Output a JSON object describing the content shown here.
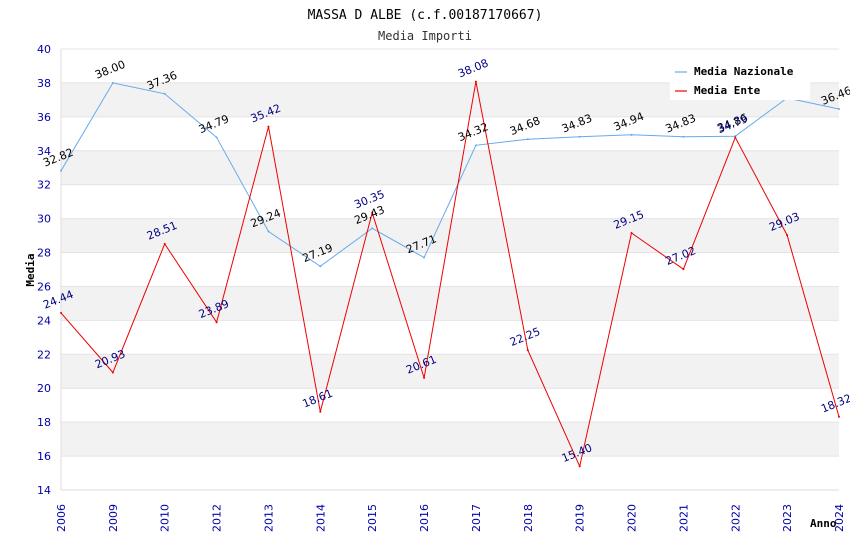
{
  "chart_data": {
    "type": "line",
    "title": "MASSA D ALBE (c.f.00187170667)",
    "subtitle": "Media Importi",
    "xlabel": "Anno",
    "ylabel": "Media",
    "categories": [
      "2006",
      "2009",
      "2010",
      "2012",
      "2013",
      "2014",
      "2015",
      "2016",
      "2017",
      "2018",
      "2019",
      "2020",
      "2021",
      "2022",
      "2023",
      "2024"
    ],
    "ylim": [
      14,
      40
    ],
    "yticks": [
      14,
      16,
      18,
      20,
      22,
      24,
      26,
      28,
      30,
      32,
      34,
      36,
      38,
      40
    ],
    "legend_position": "top-right",
    "series": [
      {
        "name": "Media Nazionale",
        "color": "#66aaee",
        "values": [
          32.82,
          38.0,
          37.36,
          34.79,
          29.24,
          27.19,
          29.43,
          27.71,
          34.32,
          34.68,
          34.83,
          34.94,
          34.83,
          34.86,
          37.11,
          36.46
        ],
        "labels": [
          "32.82",
          "38.00",
          "37.36",
          "34.79",
          "29.24",
          "27.19",
          "29.43",
          "27.71",
          "34.32",
          "34.68",
          "34.83",
          "34.94",
          "34.83",
          "34.86",
          "",
          "36.46"
        ]
      },
      {
        "name": "Media Ente",
        "color": "#ee0000",
        "values": [
          24.44,
          20.93,
          28.51,
          23.89,
          35.42,
          18.61,
          30.35,
          20.61,
          38.08,
          22.25,
          15.4,
          29.15,
          27.02,
          34.79,
          29.03,
          18.32
        ],
        "labels": [
          "24.44",
          "20.93",
          "28.51",
          "23.89",
          "35.42",
          "18.61",
          "30.35",
          "20.61",
          "38.08",
          "22.25",
          "15.40",
          "29.15",
          "27.02",
          "34.79",
          "29.03",
          "18.32"
        ]
      }
    ]
  }
}
